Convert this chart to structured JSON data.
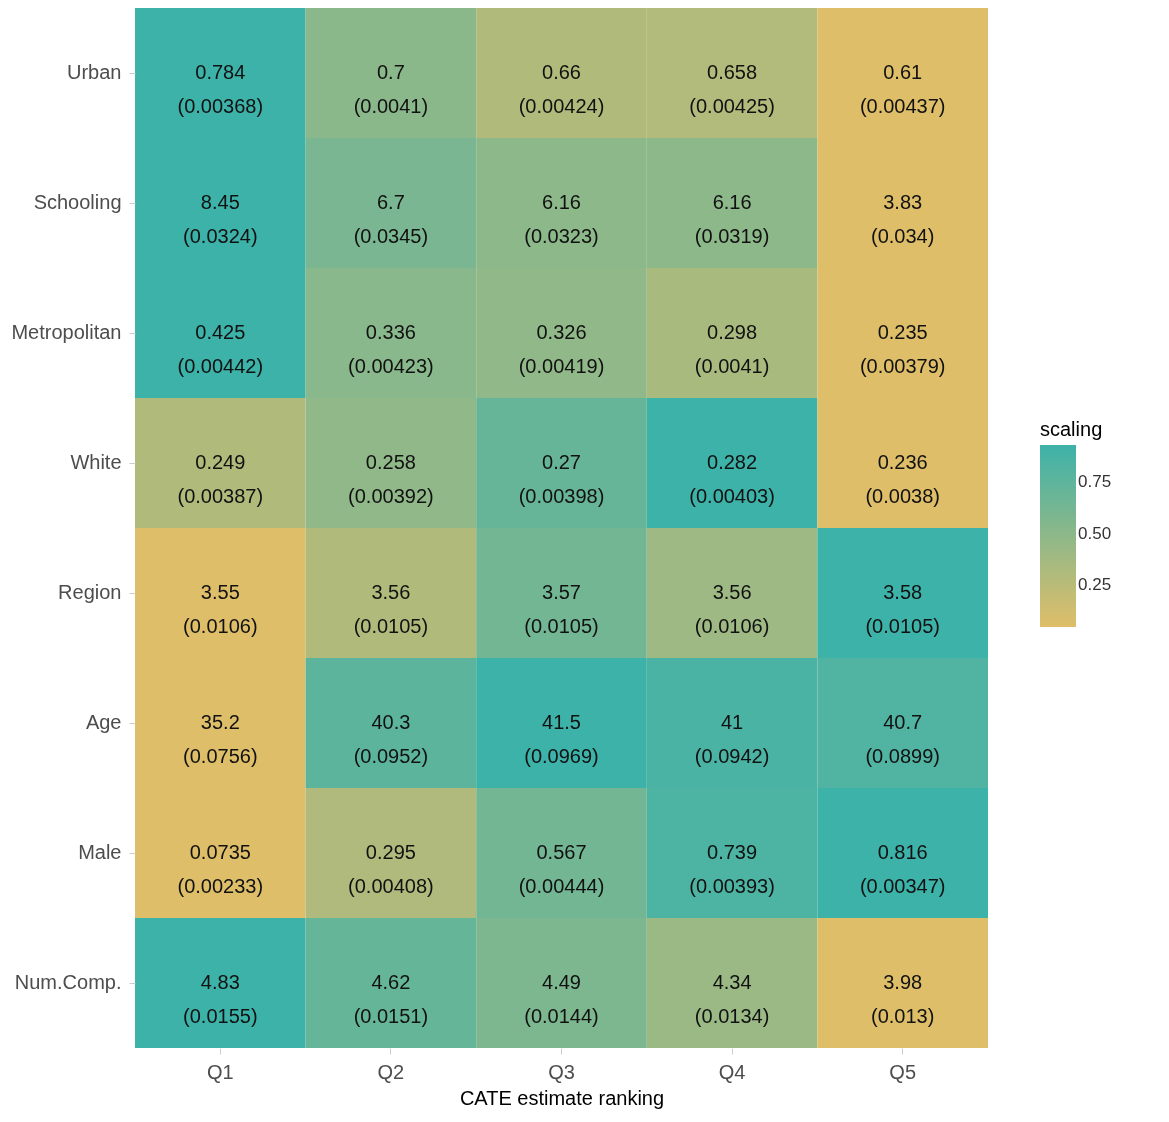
{
  "chart_data": {
    "type": "heatmap",
    "xlabel": "CATE estimate ranking",
    "clabel": "scaling",
    "categories": [
      "Q1",
      "Q2",
      "Q3",
      "Q4",
      "Q5"
    ],
    "y_categories": [
      "Urban",
      "Schooling",
      "Metropolitan",
      "White",
      "Region",
      "Age",
      "Male",
      "Num.Comp."
    ],
    "cells": [
      [
        0.93,
        0.51,
        0.3,
        0.29,
        0.05
      ],
      [
        0.93,
        0.6,
        0.5,
        0.5,
        0.05
      ],
      [
        0.93,
        0.52,
        0.47,
        0.34,
        0.05
      ],
      [
        0.3,
        0.47,
        0.7,
        0.93,
        0.05
      ],
      [
        0.05,
        0.3,
        0.64,
        0.4,
        0.93
      ],
      [
        0.05,
        0.76,
        0.93,
        0.86,
        0.82
      ],
      [
        0.05,
        0.31,
        0.64,
        0.84,
        0.93
      ],
      [
        0.93,
        0.71,
        0.58,
        0.42,
        0.05
      ]
    ],
    "cell_labels": [
      [
        "0.784\n(0.00368)",
        "0.7\n(0.0041)",
        "0.66\n(0.00424)",
        "0.658\n(0.00425)",
        "0.61\n(0.00437)"
      ],
      [
        "8.45\n(0.0324)",
        "6.7\n(0.0345)",
        "6.16\n(0.0323)",
        "6.16\n(0.0319)",
        "3.83\n(0.034)"
      ],
      [
        "0.425\n(0.00442)",
        "0.336\n(0.00423)",
        "0.326\n(0.00419)",
        "0.298\n(0.0041)",
        "0.235\n(0.00379)"
      ],
      [
        "0.249\n(0.00387)",
        "0.258\n(0.00392)",
        "0.27\n(0.00398)",
        "0.282\n(0.00403)",
        "0.236\n(0.0038)"
      ],
      [
        "3.55\n(0.0106)",
        "3.56\n(0.0105)",
        "3.57\n(0.0105)",
        "3.56\n(0.0106)",
        "3.58\n(0.0105)"
      ],
      [
        "35.2\n(0.0756)",
        "40.3\n(0.0952)",
        "41.5\n(0.0969)",
        "41\n(0.0942)",
        "40.7\n(0.0899)"
      ],
      [
        "0.0735\n(0.00233)",
        "0.295\n(0.00408)",
        "0.567\n(0.00444)",
        "0.739\n(0.00393)",
        "0.816\n(0.00347)"
      ],
      [
        "4.83\n(0.0155)",
        "4.62\n(0.0151)",
        "4.49\n(0.0144)",
        "4.34\n(0.0134)",
        "3.98\n(0.013)"
      ]
    ],
    "clim": [
      0.046,
      0.93
    ],
    "cticks": [
      0.25,
      {
        "value": 0.5,
        "label": "0.50"
      },
      0.75
    ]
  }
}
